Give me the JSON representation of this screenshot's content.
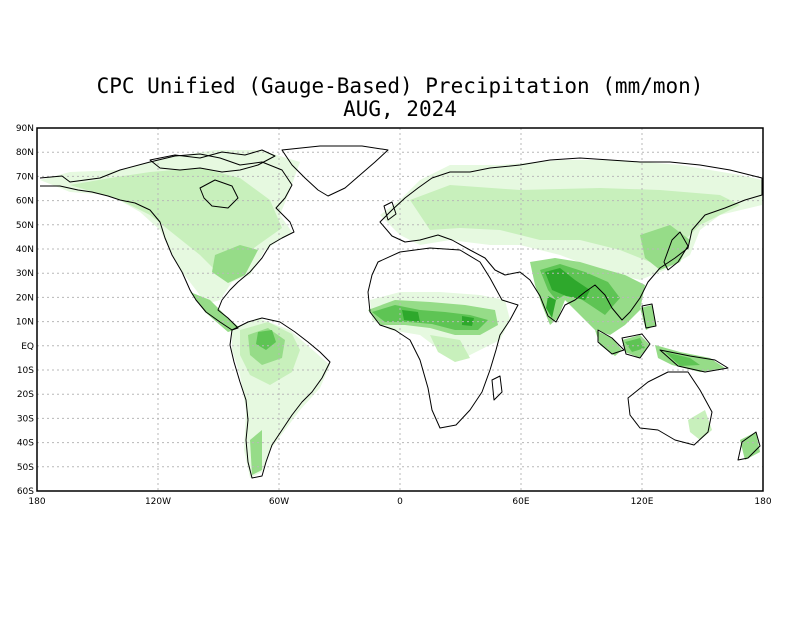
{
  "title": "CPC Unified (Gauge-Based) Precipitation (mm/mon)",
  "subtitle": "AUG, 2024",
  "lat_labels": [
    "90N",
    "80N",
    "70N",
    "60N",
    "50N",
    "40N",
    "30N",
    "20N",
    "10N",
    "EQ",
    "10S",
    "20S",
    "30S",
    "40S",
    "50S",
    "60S"
  ],
  "lon_labels": [
    "180",
    "120W",
    "60W",
    "0",
    "60E",
    "120E",
    "180"
  ],
  "colors": {
    "light": "#e6f9e0",
    "pale": "#c8f0bc",
    "medium": "#96dc88",
    "strong": "#5ec454",
    "heavy": "#2ea82c",
    "coast": "#000000",
    "grid": "#b8b8b8"
  }
}
